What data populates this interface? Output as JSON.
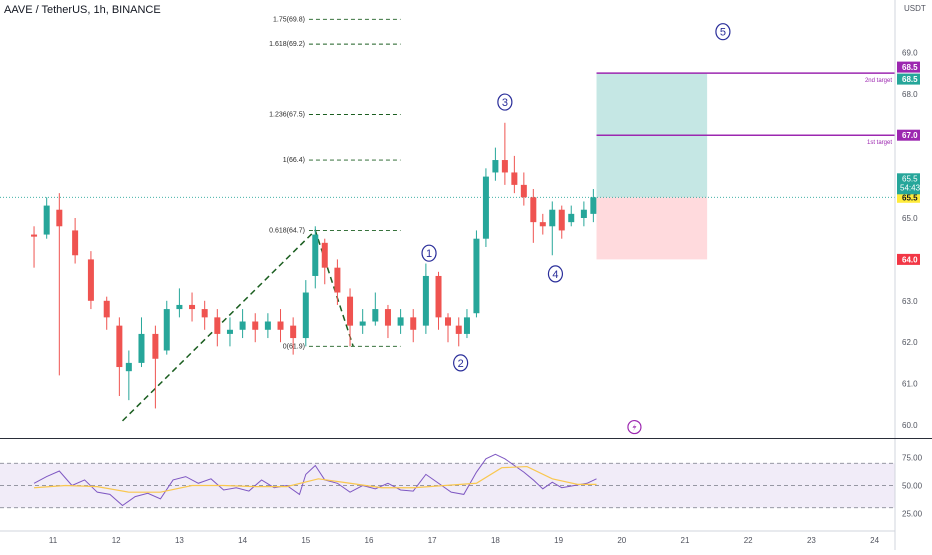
{
  "header": {
    "title": "AAVE / TetherUS, 1h, BINANCE",
    "currency": "USDT"
  },
  "chart_data": {
    "type": "candlestick",
    "x_ticks": [
      "11",
      "12",
      "13",
      "14",
      "15",
      "16",
      "17",
      "18",
      "19",
      "20",
      "21",
      "22",
      "23",
      "24"
    ],
    "y_ticks": [
      60.0,
      61.0,
      62.0,
      63.0,
      64.0,
      65.0,
      66.0,
      67.0,
      68.0,
      69.0
    ],
    "ylim": [
      59.7,
      69.8
    ],
    "last_price": {
      "label": "65.5",
      "countdown": "54:43"
    },
    "price_tags": [
      {
        "label": "68.5",
        "value": 68.5,
        "color": "#9c27b0"
      },
      {
        "label": "68.5",
        "value": 68.5,
        "color": "#26a69a"
      },
      {
        "label": "67.0",
        "value": 67.0,
        "color": "#9c27b0"
      },
      {
        "label": "65.5",
        "value": 65.5,
        "color": "#ffeb3b"
      },
      {
        "label": "64.0",
        "value": 64.0,
        "color": "#f23645"
      }
    ],
    "target_lines": [
      {
        "value": 68.5,
        "label": "2nd target"
      },
      {
        "value": 67.0,
        "label": "1st target"
      }
    ],
    "position": {
      "entry": 65.5,
      "target": 68.5,
      "stop": 64.0,
      "start_x": 19.6,
      "end_x": 21.35
    },
    "fib_levels": [
      {
        "label": "1.75(69.8)",
        "value": 69.8
      },
      {
        "label": "1.618(69.2)",
        "value": 69.2
      },
      {
        "label": "1.236(67.5)",
        "value": 67.5
      },
      {
        "label": "1(66.4)",
        "value": 66.4
      },
      {
        "label": "0.618(64.7)",
        "value": 64.7
      },
      {
        "label": "0(61.9)",
        "value": 61.9
      }
    ],
    "fib_path": [
      [
        12.1,
        60.1
      ],
      [
        15.15,
        64.7
      ],
      [
        15.75,
        61.9
      ]
    ],
    "waves": [
      {
        "label": "1",
        "x": 16.95,
        "y": 64.15
      },
      {
        "label": "2",
        "x": 17.45,
        "y": 61.5
      },
      {
        "label": "3",
        "x": 18.15,
        "y": 67.8
      },
      {
        "label": "4",
        "x": 18.95,
        "y": 63.65
      },
      {
        "label": "5",
        "x": 21.6,
        "y": 69.5
      }
    ],
    "candles": [
      [
        10.7,
        64.6,
        64.55,
        63.8,
        64.8
      ],
      [
        10.9,
        64.6,
        65.3,
        64.5,
        65.5
      ],
      [
        11.1,
        65.2,
        64.8,
        61.2,
        65.6
      ],
      [
        11.35,
        64.7,
        64.1,
        63.9,
        65.0
      ],
      [
        11.6,
        64.0,
        63.0,
        62.8,
        64.2
      ],
      [
        11.85,
        63.0,
        62.6,
        62.3,
        63.1
      ],
      [
        12.05,
        62.4,
        61.4,
        60.7,
        62.6
      ],
      [
        12.2,
        61.3,
        61.5,
        60.6,
        61.8
      ],
      [
        12.4,
        61.5,
        62.2,
        61.4,
        62.6
      ],
      [
        12.62,
        62.2,
        61.6,
        60.4,
        62.4
      ],
      [
        12.8,
        61.8,
        62.8,
        61.7,
        63.0
      ],
      [
        13.0,
        62.8,
        62.9,
        62.6,
        63.3
      ],
      [
        13.2,
        62.9,
        62.8,
        62.5,
        63.2
      ],
      [
        13.4,
        62.8,
        62.6,
        62.3,
        63.0
      ],
      [
        13.6,
        62.6,
        62.2,
        61.9,
        62.8
      ],
      [
        13.8,
        62.2,
        62.3,
        61.9,
        62.6
      ],
      [
        14.0,
        62.3,
        62.5,
        62.1,
        62.8
      ],
      [
        14.2,
        62.5,
        62.3,
        62.0,
        62.7
      ],
      [
        14.4,
        62.3,
        62.5,
        62.1,
        62.7
      ],
      [
        14.6,
        62.5,
        62.3,
        62.0,
        62.8
      ],
      [
        14.8,
        62.4,
        62.1,
        61.7,
        62.6
      ],
      [
        15.0,
        62.1,
        63.2,
        61.9,
        63.5
      ],
      [
        15.15,
        63.6,
        64.6,
        63.3,
        64.8
      ],
      [
        15.3,
        64.4,
        63.8,
        63.4,
        64.5
      ],
      [
        15.5,
        63.8,
        63.2,
        62.9,
        64.0
      ],
      [
        15.7,
        63.1,
        62.4,
        61.9,
        63.3
      ],
      [
        15.9,
        62.4,
        62.5,
        62.2,
        62.8
      ],
      [
        16.1,
        62.5,
        62.8,
        62.4,
        63.2
      ],
      [
        16.3,
        62.8,
        62.4,
        62.1,
        62.9
      ],
      [
        16.5,
        62.4,
        62.6,
        62.2,
        62.8
      ],
      [
        16.7,
        62.6,
        62.3,
        62.0,
        62.8
      ],
      [
        16.9,
        62.4,
        63.6,
        62.2,
        63.9
      ],
      [
        17.1,
        63.6,
        62.6,
        62.3,
        63.7
      ],
      [
        17.25,
        62.6,
        62.4,
        62.0,
        62.7
      ],
      [
        17.42,
        62.4,
        62.2,
        61.9,
        62.6
      ],
      [
        17.55,
        62.2,
        62.6,
        62.1,
        62.8
      ],
      [
        17.7,
        62.7,
        64.5,
        62.6,
        64.7
      ],
      [
        17.85,
        64.5,
        66.0,
        64.3,
        66.2
      ],
      [
        18.0,
        66.1,
        66.4,
        65.9,
        66.7
      ],
      [
        18.15,
        66.4,
        66.1,
        65.8,
        67.3
      ],
      [
        18.3,
        66.1,
        65.8,
        65.6,
        66.5
      ],
      [
        18.45,
        65.8,
        65.5,
        65.3,
        66.1
      ],
      [
        18.6,
        65.5,
        64.9,
        64.4,
        65.7
      ],
      [
        18.75,
        64.9,
        64.8,
        64.6,
        65.1
      ],
      [
        18.9,
        64.8,
        65.2,
        64.1,
        65.4
      ],
      [
        19.05,
        65.2,
        64.7,
        64.5,
        65.3
      ],
      [
        19.2,
        64.9,
        65.1,
        64.8,
        65.3
      ],
      [
        19.4,
        65.0,
        65.2,
        64.8,
        65.4
      ],
      [
        19.55,
        65.1,
        65.5,
        64.9,
        65.7
      ]
    ],
    "rsi": {
      "ticks": [
        "75.00",
        "50.00",
        "25.00"
      ],
      "tick_values": [
        75,
        50,
        25
      ],
      "range": [
        10,
        90
      ],
      "upper": 70,
      "mid": 50,
      "lower": 30,
      "values": [
        [
          10.7,
          52
        ],
        [
          10.9,
          58
        ],
        [
          11.1,
          63
        ],
        [
          11.3,
          50
        ],
        [
          11.5,
          55
        ],
        [
          11.7,
          44
        ],
        [
          11.9,
          42
        ],
        [
          12.1,
          32
        ],
        [
          12.3,
          40
        ],
        [
          12.5,
          43
        ],
        [
          12.7,
          38
        ],
        [
          12.9,
          55
        ],
        [
          13.1,
          58
        ],
        [
          13.3,
          52
        ],
        [
          13.5,
          56
        ],
        [
          13.7,
          46
        ],
        [
          13.9,
          48
        ],
        [
          14.1,
          45
        ],
        [
          14.3,
          55
        ],
        [
          14.5,
          48
        ],
        [
          14.7,
          50
        ],
        [
          14.9,
          42
        ],
        [
          15.0,
          60
        ],
        [
          15.15,
          68
        ],
        [
          15.3,
          55
        ],
        [
          15.5,
          52
        ],
        [
          15.7,
          44
        ],
        [
          15.9,
          50
        ],
        [
          16.1,
          47
        ],
        [
          16.3,
          52
        ],
        [
          16.5,
          46
        ],
        [
          16.7,
          45
        ],
        [
          16.9,
          60
        ],
        [
          17.1,
          52
        ],
        [
          17.3,
          44
        ],
        [
          17.5,
          42
        ],
        [
          17.7,
          62
        ],
        [
          17.85,
          74
        ],
        [
          18.0,
          78
        ],
        [
          18.15,
          74
        ],
        [
          18.3,
          68
        ],
        [
          18.45,
          62
        ],
        [
          18.6,
          55
        ],
        [
          18.75,
          47
        ],
        [
          18.9,
          53
        ],
        [
          19.05,
          48
        ],
        [
          19.25,
          50
        ],
        [
          19.45,
          52
        ],
        [
          19.6,
          56
        ]
      ],
      "ma": [
        [
          10.7,
          48
        ],
        [
          11.2,
          50
        ],
        [
          11.7,
          49
        ],
        [
          12.2,
          44
        ],
        [
          12.7,
          44
        ],
        [
          13.2,
          50
        ],
        [
          13.7,
          50
        ],
        [
          14.2,
          49
        ],
        [
          14.7,
          49
        ],
        [
          15.2,
          56
        ],
        [
          15.7,
          52
        ],
        [
          16.2,
          48
        ],
        [
          16.7,
          48
        ],
        [
          17.2,
          50
        ],
        [
          17.7,
          52
        ],
        [
          18.1,
          66
        ],
        [
          18.5,
          67
        ],
        [
          18.9,
          56
        ],
        [
          19.3,
          51
        ],
        [
          19.6,
          51
        ]
      ]
    }
  }
}
